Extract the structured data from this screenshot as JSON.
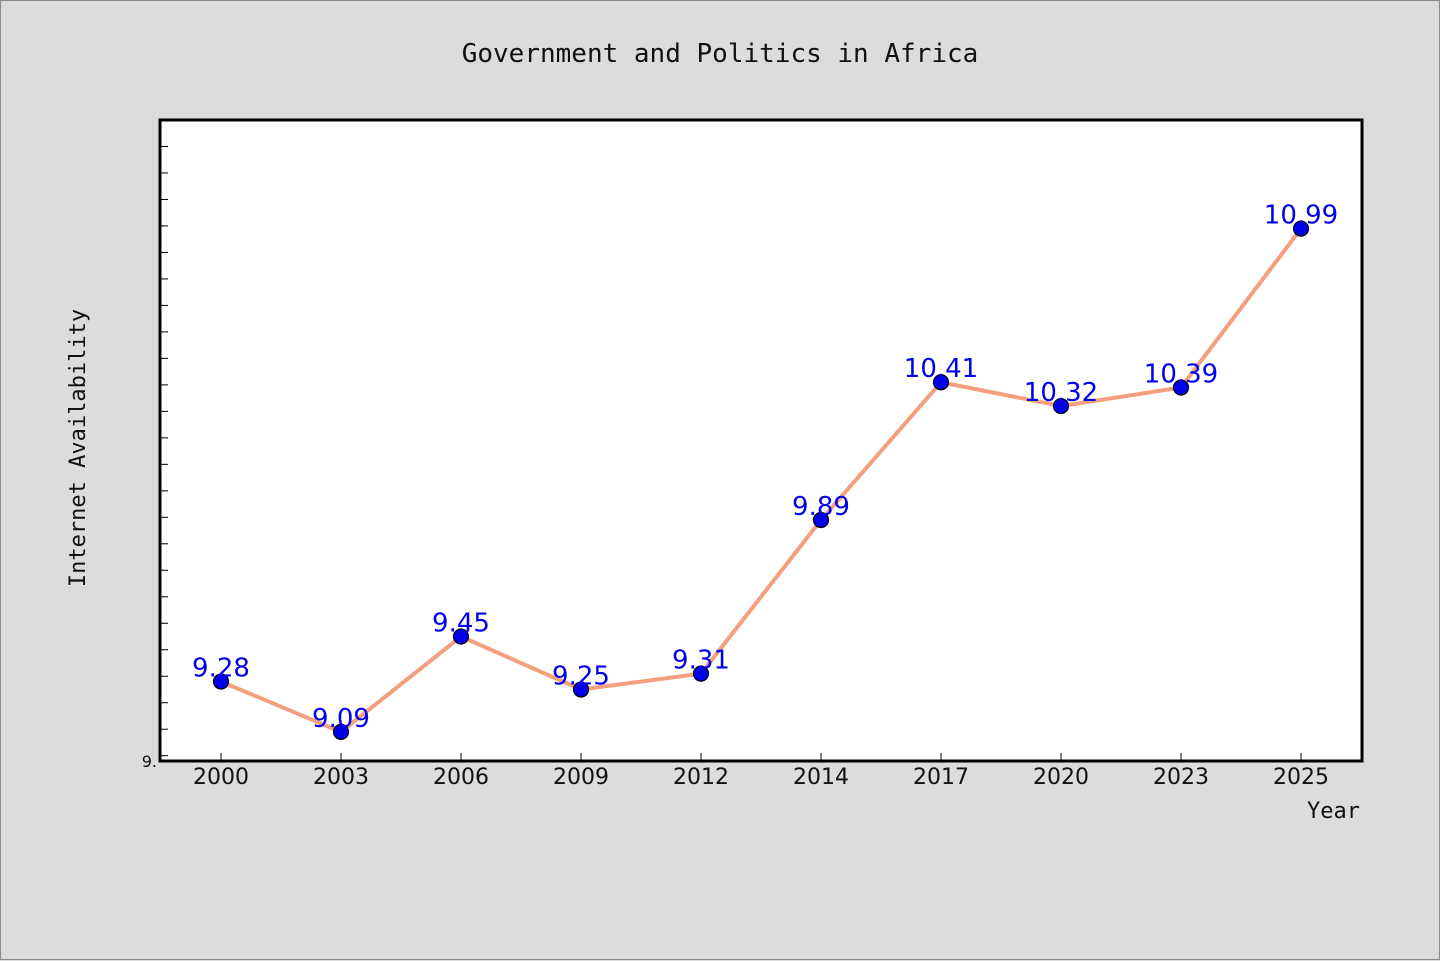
{
  "chart_data": {
    "type": "line",
    "title": "Government and Politics in Africa",
    "xlabel": "Year",
    "ylabel": "Internet Availability",
    "categories": [
      "2000",
      "2003",
      "2006",
      "2009",
      "2012",
      "2014",
      "2017",
      "2020",
      "2023",
      "2025"
    ],
    "series": [
      {
        "values": [
          9.28,
          9.09,
          9.45,
          9.25,
          9.31,
          9.89,
          10.41,
          10.32,
          10.39,
          10.99
        ]
      }
    ],
    "data_labels": [
      "9.28",
      "9.09",
      "9.45",
      "9.25",
      "9.31",
      "9.89",
      "10.41",
      "10.32",
      "10.39",
      "10.99"
    ],
    "ylim": [
      8.98,
      11.4
    ],
    "y_tick_label": "9.",
    "grid": false,
    "legend": "none",
    "colors": {
      "line": "#f4a07e",
      "marker": "#0000ee",
      "data_label": "#0000ee",
      "plot_bg": "#ffffff",
      "page_bg": "#dcdcdc"
    }
  }
}
